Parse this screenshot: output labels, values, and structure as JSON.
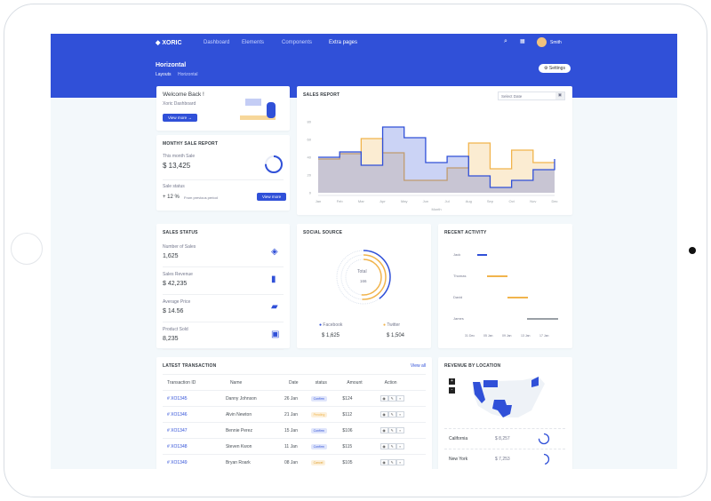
{
  "brand": "XORIC",
  "nav": [
    "Dashboard",
    "Elements",
    "Components",
    "Extra pages"
  ],
  "user": "Smith",
  "page": {
    "title": "Horizontal",
    "breadcrumb": [
      "Layouts",
      "Horizontal"
    ],
    "settings": "Settings"
  },
  "welcome": {
    "title": "Welcome Back !",
    "subtitle": "Xoric Dashboard",
    "button": "View more"
  },
  "monthly": {
    "title": "MONTHY SALE REPORT",
    "label": "This month Sale",
    "value": "$ 13,425",
    "status_label": "Sale status",
    "change": "+ 12 %",
    "change_note": "From previous period",
    "button": "View more",
    "progress": 0.75
  },
  "sales_report": {
    "title": "SALES REPORT",
    "date_placeholder": "Select Date"
  },
  "chart_data": {
    "type": "area",
    "title": "",
    "xlabel": "Month",
    "ylabel": "",
    "ylim": [
      0,
      80
    ],
    "yticks": [
      0,
      20,
      40,
      60,
      80
    ],
    "categories": [
      "Jan",
      "Feb",
      "Mar",
      "Apr",
      "May",
      "Jun",
      "Jul",
      "Aug",
      "Sep",
      "Oct",
      "Nov",
      "Dec"
    ],
    "series": [
      {
        "values": [
          40,
          46,
          31,
          74,
          62,
          34,
          41,
          19,
          6,
          14,
          26,
          38
        ],
        "color": "#3050d8"
      },
      {
        "values": [
          38,
          44,
          61,
          45,
          14,
          14,
          28,
          56,
          27,
          48,
          34,
          34
        ],
        "color": "#f1b44c"
      }
    ],
    "step": true,
    "grid": false
  },
  "sales_status": {
    "title": "SALES STATUS",
    "items": [
      {
        "label": "Number of Sales",
        "value": "1,625",
        "icon": "layers-icon"
      },
      {
        "label": "Sales Revenue",
        "value": "$ 42,235",
        "icon": "bar-chart-icon"
      },
      {
        "label": "Average Price",
        "value": "$ 14.56",
        "icon": "ticket-icon"
      },
      {
        "label": "Product Sold",
        "value": "8,235",
        "icon": "box-icon"
      }
    ]
  },
  "social": {
    "title": "SOCIAL SOURCE",
    "total_label": "Total",
    "total": "166",
    "items": [
      {
        "name": "Facebook",
        "value": "$ 1,625",
        "color": "#3050d8"
      },
      {
        "name": "Twitter",
        "value": "$ 1,504",
        "color": "#f1b44c"
      }
    ]
  },
  "activity": {
    "title": "RECENT ACTIVITY",
    "people": [
      "Jack",
      "Thomas",
      "David",
      "James"
    ],
    "ticks": [
      "31 Dec",
      "05 Jan",
      "09 Jan",
      "13 Jan",
      "17 Jan"
    ]
  },
  "transactions": {
    "title": "LATEST TRANSACTION",
    "view_all": "View all",
    "headers": [
      "Transaction ID",
      "Name",
      "Date",
      "status",
      "Amount",
      "Action"
    ],
    "rows": [
      [
        "# XO1345",
        "Danny Johnson",
        "26 Jan",
        "Confirm",
        "$124"
      ],
      [
        "# XO1346",
        "Alvin Newton",
        "21 Jan",
        "Pending",
        "$112"
      ],
      [
        "# XO1347",
        "Bennie Perez",
        "15 Jan",
        "Confirm",
        "$106"
      ],
      [
        "# XO1348",
        "Steven Kwon",
        "11 Jan",
        "Confirm",
        "$115"
      ],
      [
        "# XO1349",
        "Bryan Roark",
        "08 Jan",
        "Cancel",
        "$105"
      ]
    ]
  },
  "location": {
    "title": "REVENUE BY LOCATION",
    "zoom_in": "+",
    "zoom_out": "-",
    "items": [
      {
        "name": "California",
        "value": "$ 8,257"
      },
      {
        "name": "New York",
        "value": "$ 7,253"
      }
    ]
  }
}
